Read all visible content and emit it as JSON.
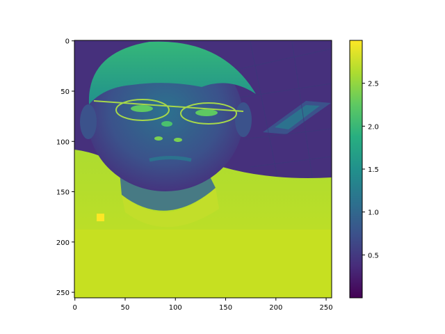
{
  "chart_data": {
    "type": "heatmap",
    "title": "",
    "xlabel": "",
    "ylabel": "",
    "image_size": [
      256,
      256
    ],
    "xlim": [
      0,
      255
    ],
    "ylim": [
      255,
      0
    ],
    "x_ticks": [
      0,
      50,
      100,
      150,
      200,
      250
    ],
    "y_ticks": [
      0,
      50,
      100,
      150,
      200,
      250
    ],
    "x_tick_labels": [
      "0",
      "50",
      "100",
      "150",
      "200",
      "250"
    ],
    "y_tick_labels": [
      "0",
      "50",
      "100",
      "150",
      "200",
      "250"
    ],
    "colormap": "viridis",
    "colorbar": {
      "range": [
        0.0,
        3.0
      ],
      "ticks": [
        0.5,
        1.0,
        1.5,
        2.0,
        2.5
      ],
      "tick_labels": [
        "0.5",
        "1.0",
        "1.5",
        "2.0",
        "2.5"
      ]
    },
    "image_content": "false-color portrait of a person wearing glasses and a light shirt under a ceiling with lights",
    "colors": {
      "low": "#440154",
      "mid_low": "#3b528b",
      "mid": "#21918c",
      "mid_high": "#5ec962",
      "high": "#fde725"
    }
  }
}
